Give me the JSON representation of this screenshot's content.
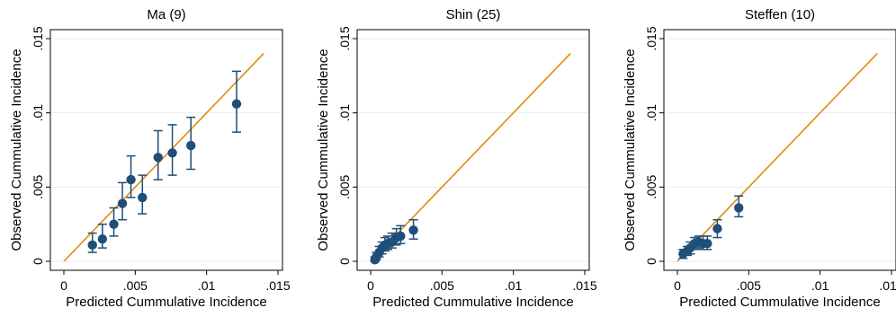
{
  "colors": {
    "fit_line": "#e08a0c",
    "marker": "#1f4e79",
    "grid": "#e7eef0",
    "axis": "#000000"
  },
  "chart_data": [
    {
      "type": "scatter",
      "title": "Ma (9)",
      "xlabel": "Predicted Cummulative Incidence",
      "ylabel": "Observed Cummulative Incidence",
      "xlim": [
        0,
        0.015
      ],
      "ylim": [
        0,
        0.015
      ],
      "xticks": [
        0,
        0.005,
        0.01,
        0.015
      ],
      "yticks": [
        0,
        0.005,
        0.01,
        0.015
      ],
      "xtick_labels": [
        "0",
        ".005",
        ".01",
        ".015"
      ],
      "ytick_labels": [
        "0",
        ".005",
        ".01",
        ".015"
      ],
      "grid": "horizontal",
      "reference_line": {
        "x": [
          0,
          0.014
        ],
        "y": [
          0,
          0.014
        ]
      },
      "points": [
        {
          "x": 0.002,
          "y": 0.0011,
          "lo": 0.0006,
          "hi": 0.0019
        },
        {
          "x": 0.0027,
          "y": 0.0015,
          "lo": 0.0009,
          "hi": 0.0025
        },
        {
          "x": 0.0035,
          "y": 0.0025,
          "lo": 0.0017,
          "hi": 0.0036
        },
        {
          "x": 0.0041,
          "y": 0.0039,
          "lo": 0.0028,
          "hi": 0.0053
        },
        {
          "x": 0.0047,
          "y": 0.0055,
          "lo": 0.0043,
          "hi": 0.0071
        },
        {
          "x": 0.0055,
          "y": 0.0043,
          "lo": 0.0032,
          "hi": 0.0058
        },
        {
          "x": 0.0066,
          "y": 0.007,
          "lo": 0.0055,
          "hi": 0.0088
        },
        {
          "x": 0.0076,
          "y": 0.0073,
          "lo": 0.0058,
          "hi": 0.0092
        },
        {
          "x": 0.0089,
          "y": 0.0078,
          "lo": 0.0062,
          "hi": 0.0097
        },
        {
          "x": 0.0121,
          "y": 0.0106,
          "lo": 0.0087,
          "hi": 0.0128
        }
      ]
    },
    {
      "type": "scatter",
      "title": "Shin (25)",
      "xlabel": "Predicted Cummulative Incidence",
      "ylabel": "Observed Cummulative Incidence",
      "xlim": [
        0,
        0.015
      ],
      "ylim": [
        0,
        0.015
      ],
      "xticks": [
        0,
        0.005,
        0.01,
        0.015
      ],
      "yticks": [
        0,
        0.005,
        0.01,
        0.015
      ],
      "xtick_labels": [
        "0",
        ".005",
        ".01",
        ".015"
      ],
      "ytick_labels": [
        "0",
        ".005",
        ".01",
        ".015"
      ],
      "grid": "horizontal",
      "reference_line": {
        "x": [
          0,
          0.014
        ],
        "y": [
          0,
          0.014
        ]
      },
      "points": [
        {
          "x": 0.0003,
          "y": 0.0001,
          "lo": 0.0,
          "hi": 0.0003
        },
        {
          "x": 0.0004,
          "y": 0.0003,
          "lo": 0.0001,
          "hi": 0.0006
        },
        {
          "x": 0.0006,
          "y": 0.0006,
          "lo": 0.0003,
          "hi": 0.001
        },
        {
          "x": 0.0008,
          "y": 0.0009,
          "lo": 0.0005,
          "hi": 0.0013
        },
        {
          "x": 0.001,
          "y": 0.0011,
          "lo": 0.0007,
          "hi": 0.0016
        },
        {
          "x": 0.0012,
          "y": 0.0012,
          "lo": 0.0008,
          "hi": 0.0017
        },
        {
          "x": 0.0015,
          "y": 0.0013,
          "lo": 0.0009,
          "hi": 0.0019
        },
        {
          "x": 0.0018,
          "y": 0.0016,
          "lo": 0.0011,
          "hi": 0.0022
        },
        {
          "x": 0.0021,
          "y": 0.0017,
          "lo": 0.0012,
          "hi": 0.0024
        },
        {
          "x": 0.003,
          "y": 0.0021,
          "lo": 0.0015,
          "hi": 0.0028
        }
      ]
    },
    {
      "type": "scatter",
      "title": "Steffen (10)",
      "xlabel": "Predicted Cummulative Incidence",
      "ylabel": "Observed Cummulative Incidence",
      "xlim": [
        0,
        0.015
      ],
      "ylim": [
        0,
        0.015
      ],
      "xticks": [
        0,
        0.005,
        0.01,
        0.015
      ],
      "yticks": [
        0,
        0.005,
        0.01,
        0.015
      ],
      "xtick_labels": [
        "0",
        ".005",
        ".01",
        ".015"
      ],
      "ytick_labels": [
        "0",
        ".005",
        ".01",
        ".015"
      ],
      "grid": "horizontal",
      "reference_line": {
        "x": [
          0,
          0.014
        ],
        "y": [
          0,
          0.014
        ]
      },
      "points": [
        {
          "x": 0.0004,
          "y": 0.0005,
          "lo": 0.0002,
          "hi": 0.0008
        },
        {
          "x": 0.0007,
          "y": 0.0007,
          "lo": 0.0004,
          "hi": 0.001
        },
        {
          "x": 0.0009,
          "y": 0.0009,
          "lo": 0.0005,
          "hi": 0.0013
        },
        {
          "x": 0.0012,
          "y": 0.0012,
          "lo": 0.0008,
          "hi": 0.0016
        },
        {
          "x": 0.0015,
          "y": 0.0013,
          "lo": 0.0009,
          "hi": 0.0017
        },
        {
          "x": 0.0018,
          "y": 0.0012,
          "lo": 0.0008,
          "hi": 0.0017
        },
        {
          "x": 0.0021,
          "y": 0.0012,
          "lo": 0.0008,
          "hi": 0.0017
        },
        {
          "x": 0.0028,
          "y": 0.0022,
          "lo": 0.0016,
          "hi": 0.0028
        },
        {
          "x": 0.0043,
          "y": 0.0036,
          "lo": 0.003,
          "hi": 0.0044
        }
      ]
    }
  ]
}
